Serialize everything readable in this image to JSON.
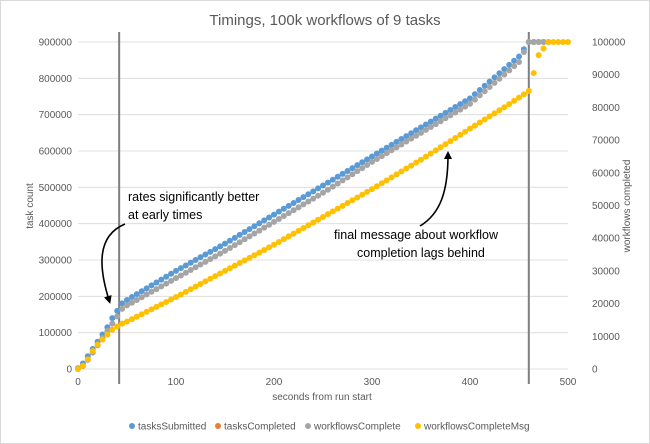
{
  "chart_data": {
    "type": "scatter",
    "title": "Timings, 100k workflows of 9 tasks",
    "xlabel": "seconds from run start",
    "ylabel": "task count",
    "y2label": "workflows completed",
    "xlim": [
      0,
      500
    ],
    "ylim": [
      0,
      900000
    ],
    "y2lim": [
      0,
      100000
    ],
    "x_ticks": [
      0,
      100,
      200,
      300,
      400,
      500
    ],
    "y_ticks": [
      0,
      100000,
      200000,
      300000,
      400000,
      500000,
      600000,
      700000,
      800000,
      900000
    ],
    "y2_ticks": [
      0,
      10000,
      20000,
      30000,
      40000,
      50000,
      60000,
      70000,
      80000,
      90000,
      100000
    ],
    "grid": true,
    "legend_position": "bottom",
    "vertical_lines": [
      42,
      460
    ],
    "annotations": [
      {
        "lines": [
          "rates significantly better",
          "at early times"
        ],
        "arrow_from": [
          27,
          395000
        ],
        "arrow_to": [
          37,
          183000
        ]
      },
      {
        "lines": [
          "final message about workflow",
          "completion lags behind"
        ],
        "arrow_from": [
          355,
          410000
        ],
        "arrow_to": [
          378,
          605000
        ]
      }
    ],
    "series": [
      {
        "name": "tasksSubmitted",
        "color": "#5b9bd5",
        "axis": "left",
        "points": [
          [
            0,
            2000
          ],
          [
            5,
            15000
          ],
          [
            10,
            35000
          ],
          [
            15,
            55000
          ],
          [
            20,
            75000
          ],
          [
            25,
            95000
          ],
          [
            30,
            115000
          ],
          [
            35,
            140000
          ],
          [
            40,
            160000
          ],
          [
            42,
            175000
          ],
          [
            50,
            190000
          ],
          [
            100,
            270000
          ],
          [
            150,
            345000
          ],
          [
            200,
            425000
          ],
          [
            250,
            505000
          ],
          [
            300,
            585000
          ],
          [
            350,
            665000
          ],
          [
            400,
            745000
          ],
          [
            450,
            860000
          ],
          [
            460,
            900000
          ],
          [
            470,
            900000
          ],
          [
            480,
            900000
          ]
        ]
      },
      {
        "name": "tasksCompleted",
        "color": "#ed7d31",
        "axis": "left",
        "points": [
          [
            0,
            0
          ],
          [
            5,
            8000
          ],
          [
            10,
            25000
          ],
          [
            15,
            45000
          ],
          [
            20,
            65000
          ],
          [
            25,
            85000
          ],
          [
            30,
            105000
          ],
          [
            35,
            125000
          ],
          [
            40,
            145000
          ],
          [
            42,
            160000
          ],
          [
            50,
            175000
          ],
          [
            100,
            250000
          ],
          [
            150,
            325000
          ],
          [
            200,
            405000
          ],
          [
            250,
            485000
          ],
          [
            300,
            570000
          ],
          [
            350,
            650000
          ],
          [
            400,
            730000
          ],
          [
            450,
            845000
          ],
          [
            460,
            900000
          ],
          [
            470,
            900000
          ],
          [
            480,
            900000
          ]
        ]
      },
      {
        "name": "workflowsComplete",
        "color": "#a5a5a5",
        "axis": "left",
        "points": [
          [
            0,
            0
          ],
          [
            5,
            8000
          ],
          [
            10,
            25000
          ],
          [
            15,
            45000
          ],
          [
            20,
            65000
          ],
          [
            25,
            85000
          ],
          [
            30,
            105000
          ],
          [
            35,
            125000
          ],
          [
            40,
            145000
          ],
          [
            42,
            160000
          ],
          [
            50,
            175000
          ],
          [
            100,
            250000
          ],
          [
            150,
            325000
          ],
          [
            200,
            405000
          ],
          [
            250,
            485000
          ],
          [
            300,
            570000
          ],
          [
            350,
            650000
          ],
          [
            400,
            730000
          ],
          [
            450,
            845000
          ],
          [
            460,
            900000
          ],
          [
            470,
            900000
          ],
          [
            480,
            900000
          ]
        ]
      },
      {
        "name": "workflowsCompleteMsg",
        "color": "#ffc000",
        "axis": "right",
        "points": [
          [
            0,
            0
          ],
          [
            5,
            1000
          ],
          [
            10,
            3000
          ],
          [
            15,
            5500
          ],
          [
            20,
            7500
          ],
          [
            25,
            9000
          ],
          [
            30,
            10500
          ],
          [
            35,
            12000
          ],
          [
            40,
            13000
          ],
          [
            42,
            13500
          ],
          [
            50,
            14500
          ],
          [
            100,
            22000
          ],
          [
            150,
            30000
          ],
          [
            200,
            38000
          ],
          [
            250,
            46500
          ],
          [
            300,
            55000
          ],
          [
            350,
            64000
          ],
          [
            400,
            73500
          ],
          [
            440,
            81000
          ],
          [
            460,
            85000
          ],
          [
            470,
            96000
          ],
          [
            480,
            100000
          ],
          [
            490,
            100000
          ],
          [
            500,
            100000
          ]
        ]
      }
    ]
  }
}
